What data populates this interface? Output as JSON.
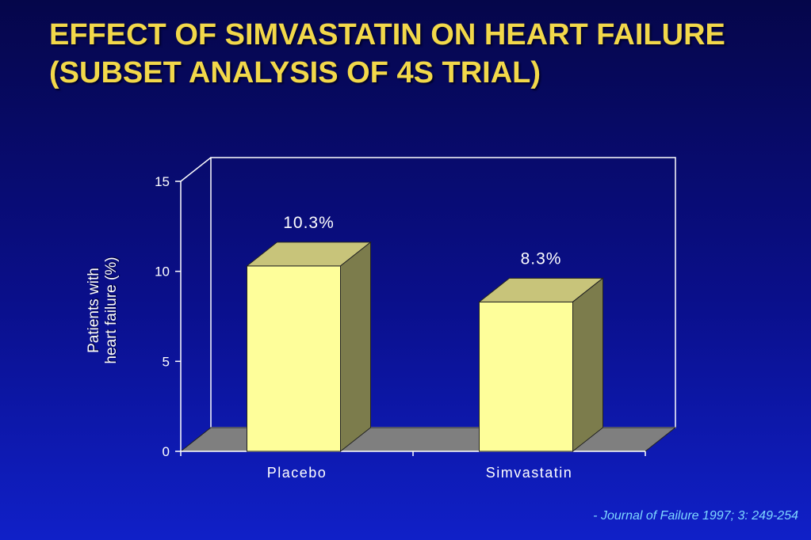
{
  "slide": {
    "title": "EFFECT OF SIMVASTATIN ON HEART FAILURE (SUBSET ANALYSIS OF 4S TRIAL)",
    "citation": "- Journal of Failure 1997; 3: 249-254"
  },
  "chart_data": {
    "type": "bar",
    "style": "3d",
    "categories": [
      "Placebo",
      "Simvastatin"
    ],
    "values": [
      10.3,
      8.3
    ],
    "data_labels": [
      "10.3%",
      "8.3%"
    ],
    "ylabel": "Patients with\nheart failure (%)",
    "xlabel": "",
    "ylim": [
      0,
      15
    ],
    "yticks": [
      0,
      5,
      10,
      15
    ],
    "grid": false,
    "legend": "none",
    "colors": {
      "bar_front": "#fefe9a",
      "bar_top": "#c8c47a",
      "bar_side": "#7c7c4c",
      "floor": "#7f7f7f",
      "axis": "#ffffff",
      "text": "#ffffff"
    }
  }
}
